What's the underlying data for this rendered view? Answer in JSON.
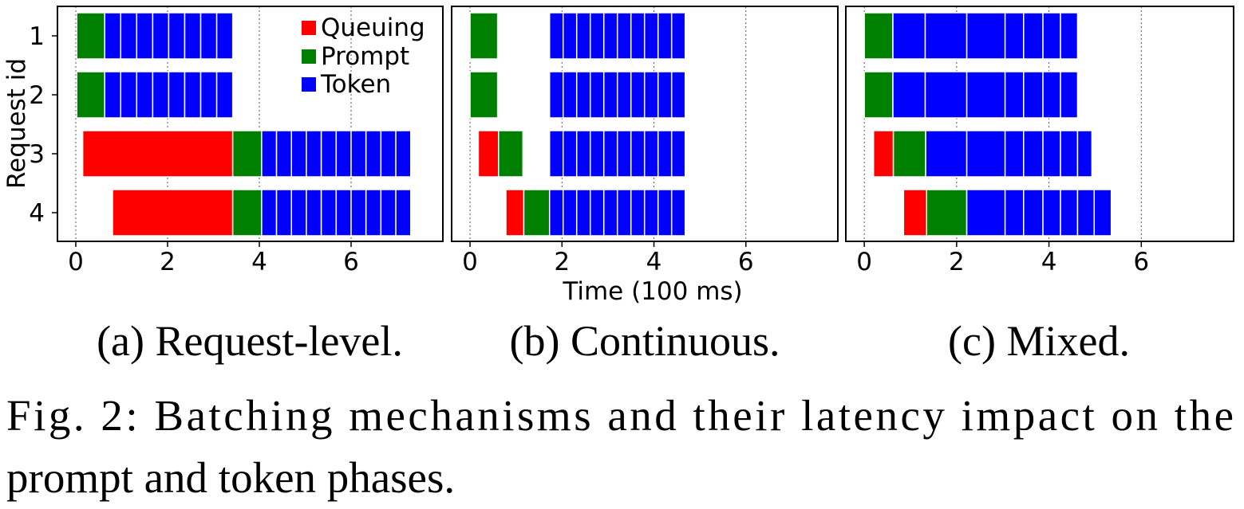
{
  "colors": {
    "queuing": "#ff0000",
    "prompt": "#008000",
    "token": "#0000ff"
  },
  "chart_data": [
    {
      "type": "gantt",
      "subcaption": "(a) Request-level.",
      "ylabel": "Request id",
      "xlabel": "",
      "xlim": [
        -0.4,
        8
      ],
      "xticks": [
        0,
        2,
        4,
        6
      ],
      "grid": "vertical-dotted",
      "legend": {
        "placement": "top-right",
        "entries": [
          "Queuing",
          "Prompt",
          "Token"
        ]
      },
      "rows": [
        {
          "id": "1",
          "queuing": null,
          "prompt": [
            0.02,
            0.63
          ],
          "token": [
            0.63,
            3.42
          ],
          "token_steps": 8
        },
        {
          "id": "2",
          "queuing": null,
          "prompt": [
            0.02,
            0.63
          ],
          "token": [
            0.63,
            3.42
          ],
          "token_steps": 8
        },
        {
          "id": "3",
          "queuing": [
            0.15,
            3.42
          ],
          "prompt": [
            3.42,
            4.05
          ],
          "token": [
            4.05,
            7.3
          ],
          "token_steps": 10
        },
        {
          "id": "4",
          "queuing": [
            0.8,
            3.42
          ],
          "prompt": [
            3.42,
            4.05
          ],
          "token": [
            4.05,
            7.3
          ],
          "token_steps": 10
        }
      ]
    },
    {
      "type": "gantt",
      "subcaption": "(b) Continuous.",
      "ylabel": "",
      "xlabel": "Time (100 ms)",
      "xlim": [
        -0.4,
        8
      ],
      "xticks": [
        0,
        2,
        4,
        6
      ],
      "grid": "vertical-dotted",
      "rows": [
        {
          "id": "1",
          "queuing": null,
          "prompt": [
            0.0,
            0.6
          ],
          "token": [
            1.73,
            4.68
          ],
          "token_steps": 10
        },
        {
          "id": "2",
          "queuing": null,
          "prompt": [
            0.0,
            0.6
          ],
          "token": [
            1.73,
            4.68
          ],
          "token_steps": 10
        },
        {
          "id": "3",
          "queuing": [
            0.18,
            0.62
          ],
          "prompt": [
            0.62,
            1.15
          ],
          "token": [
            1.73,
            4.68
          ],
          "token_steps": 10
        },
        {
          "id": "4",
          "queuing": [
            0.78,
            1.17
          ],
          "prompt": [
            1.17,
            1.73
          ],
          "token": [
            1.73,
            4.68
          ],
          "token_steps": 10
        }
      ]
    },
    {
      "type": "gantt",
      "subcaption": "(c) Mixed.",
      "ylabel": "",
      "xlabel": "",
      "xlim": [
        -0.4,
        8
      ],
      "xticks": [
        0,
        2,
        4,
        6
      ],
      "grid": "vertical-dotted",
      "rows": [
        {
          "id": "1",
          "queuing": null,
          "prompt": [
            0.0,
            0.62
          ],
          "token": [
            0.62,
            4.62
          ],
          "token_steps": [
            0.62,
            1.32,
            2.22,
            3.05,
            3.45,
            3.87,
            4.25,
            4.62
          ]
        },
        {
          "id": "2",
          "queuing": null,
          "prompt": [
            0.0,
            0.62
          ],
          "token": [
            0.62,
            4.62
          ],
          "token_steps": [
            0.62,
            1.32,
            2.22,
            3.05,
            3.45,
            3.87,
            4.25,
            4.62
          ]
        },
        {
          "id": "3",
          "queuing": [
            0.2,
            0.63
          ],
          "prompt": [
            0.63,
            1.33
          ],
          "token": [
            1.33,
            4.93
          ],
          "token_steps": [
            1.33,
            2.22,
            3.05,
            3.45,
            3.87,
            4.25,
            4.62,
            4.93
          ]
        },
        {
          "id": "4",
          "queuing": [
            0.85,
            1.35
          ],
          "prompt": [
            1.35,
            2.22
          ],
          "token": [
            2.22,
            5.35
          ],
          "token_steps": [
            2.22,
            3.05,
            3.45,
            3.87,
            4.25,
            4.62,
            4.98,
            5.35
          ]
        }
      ]
    }
  ],
  "caption": {
    "line1": "Fig. 2: Batching mechanisms and their latency impact on the",
    "line2": "prompt and token phases."
  }
}
